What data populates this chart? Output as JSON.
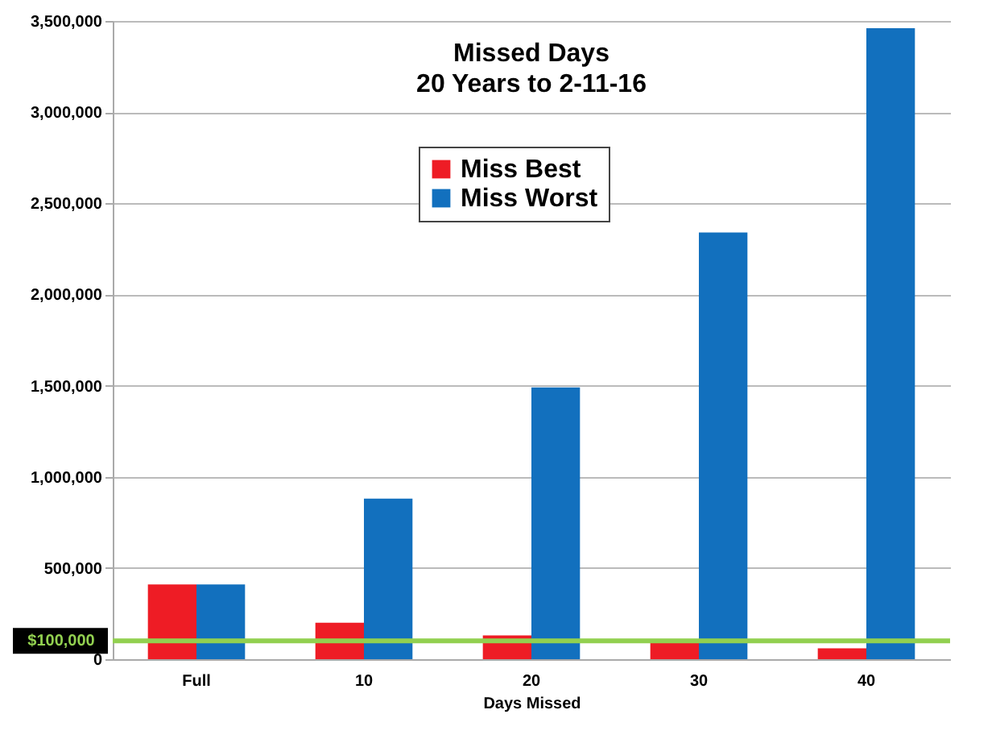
{
  "chart_data": {
    "type": "bar",
    "title": "Missed Days",
    "subtitle": "20 Years to 2-11-16",
    "xlabel": "Days Missed",
    "categories": [
      "Full",
      "10",
      "20",
      "30",
      "40"
    ],
    "series": [
      {
        "name": "Miss Best",
        "color": "#ee1c25",
        "values": [
          410000,
          200000,
          130000,
          90000,
          60000
        ]
      },
      {
        "name": "Miss Worst",
        "color": "#1270be",
        "values": [
          410000,
          880000,
          1490000,
          2340000,
          3460000
        ]
      }
    ],
    "ylim": [
      0,
      3500000
    ],
    "yticks": [
      0,
      {
        "value": 500000,
        "label": "500,000"
      },
      {
        "value": 1000000,
        "label": "1,000,000"
      },
      {
        "value": 1500000,
        "label": "1,500,000"
      },
      {
        "value": 2000000,
        "label": "2,000,000"
      },
      {
        "value": 2500000,
        "label": "2,500,000"
      },
      {
        "value": 3000000,
        "label": "3,000,000"
      },
      {
        "value": 3500000,
        "label": "3,500,000"
      }
    ],
    "grid": "y",
    "legend": "top",
    "ref_lines": [
      {
        "axis": "y",
        "value": 100000,
        "label": "$100,000",
        "color": "#92d050"
      }
    ]
  }
}
